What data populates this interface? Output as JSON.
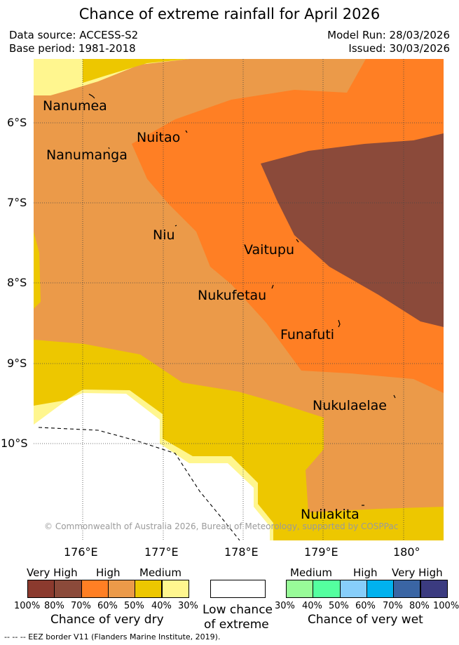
{
  "title": "Chance of extreme rainfall for April 2026",
  "data_source": "Data source: ACCESS-S2",
  "base_period": "Base period: 1981-2018",
  "model_run": "Model Run: 28/03/2026",
  "issued": "Issued: 30/03/2026",
  "places": [
    "Nanumea",
    "Nuitao",
    "Nanumanga",
    "Niu",
    "Vaitupu",
    "Nukufetau",
    "Funafuti",
    "Nukulaelae",
    "Nuilakita"
  ],
  "lat_ticks": [
    "6°S",
    "7°S",
    "8°S",
    "9°S",
    "10°S"
  ],
  "lon_ticks": [
    "176°E",
    "177°E",
    "178°E",
    "179°E",
    "180°"
  ],
  "copyright": "© Commonwealth of Australia 2026, Bureau of Meteorology, supported by COSPPac",
  "legend": {
    "dry_categories": [
      "Very High",
      "High",
      "Medium"
    ],
    "dry_pct": [
      "100%",
      "80%",
      "70%",
      "60%",
      "50%",
      "40%",
      "30%"
    ],
    "dry_caption": "Chance of very dry",
    "low_line1": "Low chance",
    "low_line2": "of extreme",
    "wet_categories": [
      "Medium",
      "High",
      "Very High"
    ],
    "wet_pct": [
      "30%",
      "40%",
      "50%",
      "60%",
      "70%",
      "80%",
      "100%"
    ],
    "wet_caption": "Chance of very wet",
    "dry_colors": [
      "#8b3a2e",
      "#8b4a3a",
      "#ff7f24",
      "#eb9a49",
      "#edc700",
      "#fff68f"
    ],
    "low_color": "#ffffff",
    "wet_colors": [
      "#98fb98",
      "#54ff9f",
      "#87cefa",
      "#00b2ee",
      "#3a65a4",
      "#3b3b80"
    ]
  },
  "footer": "--  --  -- EEZ border V11 (Flanders Marine Institute, 2019)."
}
